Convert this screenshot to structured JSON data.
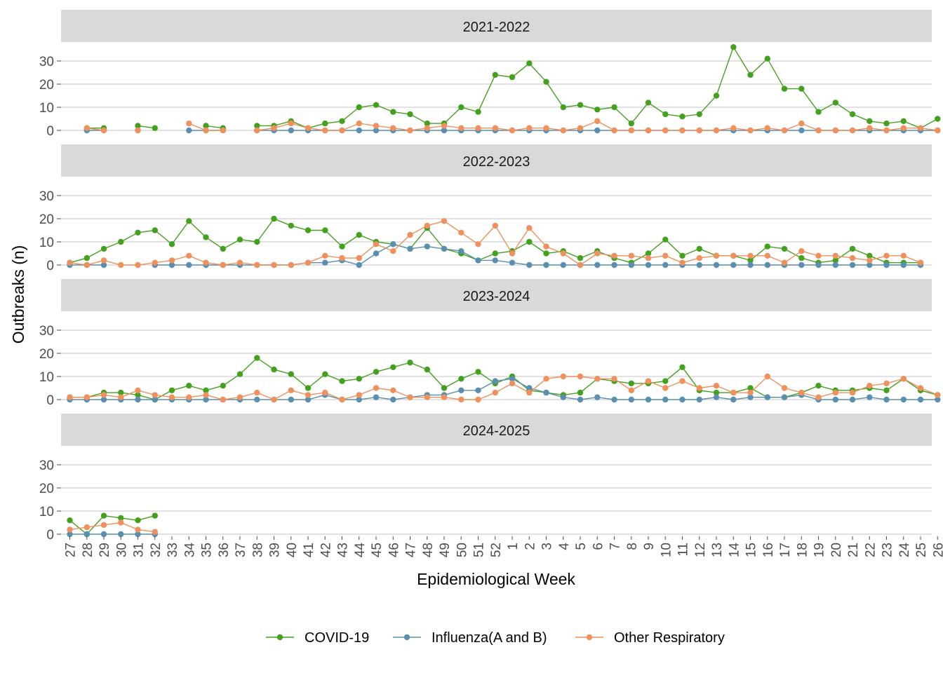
{
  "chart_data": {
    "type": "line",
    "xlabel": "Epidemiological Week",
    "ylabel": "Outbreaks (n)",
    "ylim": [
      0,
      36
    ],
    "yticks": [
      0,
      10,
      20,
      30
    ],
    "grid": "horizontal",
    "legend_position": "bottom",
    "x": [
      "27",
      "28",
      "29",
      "30",
      "31",
      "32",
      "33",
      "34",
      "35",
      "36",
      "37",
      "38",
      "39",
      "40",
      "41",
      "42",
      "43",
      "44",
      "45",
      "46",
      "47",
      "48",
      "49",
      "50",
      "51",
      "52",
      "1",
      "2",
      "3",
      "4",
      "5",
      "6",
      "7",
      "8",
      "9",
      "10",
      "11",
      "12",
      "13",
      "14",
      "15",
      "16",
      "17",
      "18",
      "19",
      "20",
      "21",
      "22",
      "23",
      "24",
      "25",
      "26"
    ],
    "series_styles": [
      {
        "name": "COVID-19",
        "color": "#43a11e"
      },
      {
        "name": "Influenza(A and B)",
        "color": "#5b8fb0"
      },
      {
        "name": "Other Respiratory",
        "color": "#f0905d"
      }
    ],
    "panels": [
      {
        "label": "2021-2022",
        "series": [
          {
            "name": "COVID-19",
            "values": [
              null,
              1,
              1,
              null,
              2,
              1,
              null,
              null,
              2,
              1,
              null,
              2,
              2,
              4,
              1,
              3,
              4,
              10,
              11,
              8,
              7,
              3,
              3,
              10,
              8,
              24,
              23,
              29,
              21,
              10,
              11,
              9,
              10,
              3,
              12,
              7,
              6,
              7,
              15,
              36,
              24,
              31,
              18,
              18,
              8,
              12,
              7,
              4,
              3,
              4,
              1,
              5
            ]
          },
          {
            "name": "Influenza(A and B)",
            "values": [
              null,
              0,
              0,
              null,
              0,
              null,
              null,
              0,
              0,
              0,
              null,
              0,
              0,
              0,
              0,
              0,
              0,
              0,
              0,
              0,
              0,
              0,
              0,
              0,
              0,
              0,
              0,
              0,
              0,
              0,
              0,
              0,
              0,
              0,
              0,
              0,
              0,
              0,
              0,
              0,
              0,
              0,
              0,
              0,
              0,
              0,
              0,
              0,
              0,
              0,
              0,
              0
            ]
          },
          {
            "name": "Other Respiratory",
            "values": [
              null,
              1,
              0,
              null,
              0,
              null,
              null,
              3,
              0,
              0,
              null,
              0,
              1,
              3,
              1,
              0,
              0,
              3,
              2,
              1,
              0,
              1,
              2,
              1,
              1,
              1,
              0,
              1,
              1,
              0,
              1,
              4,
              0,
              0,
              0,
              0,
              0,
              0,
              0,
              1,
              0,
              1,
              0,
              3,
              0,
              0,
              0,
              1,
              0,
              1,
              1,
              0
            ]
          }
        ]
      },
      {
        "label": "2022-2023",
        "series": [
          {
            "name": "COVID-19",
            "values": [
              1,
              3,
              7,
              10,
              14,
              15,
              9,
              19,
              12,
              7,
              11,
              10,
              20,
              17,
              15,
              15,
              8,
              13,
              10,
              9,
              7,
              16,
              7,
              5,
              2,
              5,
              6,
              10,
              5,
              6,
              3,
              6,
              3,
              1,
              5,
              11,
              4,
              7,
              4,
              4,
              2,
              8,
              7,
              3,
              1,
              2,
              7,
              4,
              1,
              1,
              1,
              null
            ]
          },
          {
            "name": "Influenza(A and B)",
            "values": [
              0,
              0,
              0,
              null,
              null,
              0,
              0,
              0,
              0,
              0,
              0,
              0,
              0,
              0,
              1,
              1,
              2,
              0,
              5,
              9,
              7,
              8,
              7,
              6,
              2,
              2,
              1,
              0,
              0,
              0,
              0,
              0,
              0,
              0,
              0,
              0,
              0,
              0,
              0,
              0,
              0,
              0,
              0,
              0,
              0,
              0,
              0,
              0,
              0,
              0,
              0,
              null
            ]
          },
          {
            "name": "Other Respiratory",
            "values": [
              1,
              0,
              2,
              0,
              0,
              1,
              2,
              4,
              1,
              0,
              1,
              0,
              0,
              0,
              1,
              4,
              3,
              3,
              9,
              6,
              13,
              17,
              19,
              14,
              9,
              17,
              5,
              16,
              8,
              5,
              0,
              5,
              4,
              4,
              3,
              4,
              1,
              3,
              4,
              4,
              4,
              4,
              1,
              6,
              4,
              4,
              3,
              2,
              4,
              4,
              1,
              null
            ]
          }
        ]
      },
      {
        "label": "2023-2024",
        "series": [
          {
            "name": "COVID-19",
            "values": [
              1,
              1,
              3,
              3,
              2,
              0,
              4,
              6,
              4,
              6,
              11,
              18,
              13,
              11,
              5,
              11,
              8,
              9,
              12,
              14,
              16,
              13,
              5,
              9,
              12,
              7,
              10,
              4,
              3,
              2,
              3,
              9,
              8,
              7,
              7,
              8,
              14,
              4,
              3,
              3,
              5,
              1,
              1,
              3,
              6,
              4,
              4,
              5,
              4,
              9,
              4,
              2
            ]
          },
          {
            "name": "Influenza(A and B)",
            "values": [
              0,
              0,
              0,
              0,
              0,
              0,
              0,
              0,
              0,
              0,
              0,
              0,
              0,
              0,
              0,
              2,
              0,
              0,
              1,
              0,
              1,
              2,
              2,
              4,
              4,
              8,
              9,
              5,
              3,
              1,
              0,
              1,
              0,
              0,
              0,
              0,
              0,
              0,
              1,
              0,
              1,
              1,
              1,
              2,
              0,
              0,
              0,
              1,
              0,
              0,
              0,
              0
            ]
          },
          {
            "name": "Other Respiratory",
            "values": [
              1,
              1,
              2,
              1,
              4,
              2,
              1,
              1,
              2,
              0,
              1,
              3,
              0,
              4,
              2,
              3,
              0,
              2,
              5,
              4,
              1,
              1,
              1,
              0,
              0,
              3,
              7,
              3,
              9,
              10,
              10,
              9,
              9,
              4,
              8,
              5,
              8,
              5,
              6,
              3,
              3,
              10,
              5,
              3,
              1,
              3,
              3,
              6,
              7,
              9,
              5,
              2
            ]
          }
        ]
      },
      {
        "label": "2024-2025",
        "series": [
          {
            "name": "COVID-19",
            "values": [
              6,
              0,
              8,
              7,
              6,
              8,
              null,
              null,
              null,
              null,
              null,
              null,
              null,
              null,
              null,
              null,
              null,
              null,
              null,
              null,
              null,
              null,
              null,
              null,
              null,
              null,
              null,
              null,
              null,
              null,
              null,
              null,
              null,
              null,
              null,
              null,
              null,
              null,
              null,
              null,
              null,
              null,
              null,
              null,
              null,
              null,
              null,
              null,
              null,
              null,
              null,
              null
            ]
          },
          {
            "name": "Influenza(A and B)",
            "values": [
              0,
              0,
              0,
              0,
              0,
              0,
              null,
              null,
              null,
              null,
              null,
              null,
              null,
              null,
              null,
              null,
              null,
              null,
              null,
              null,
              null,
              null,
              null,
              null,
              null,
              null,
              null,
              null,
              null,
              null,
              null,
              null,
              null,
              null,
              null,
              null,
              null,
              null,
              null,
              null,
              null,
              null,
              null,
              null,
              null,
              null,
              null,
              null,
              null,
              null,
              null,
              null
            ]
          },
          {
            "name": "Other Respiratory",
            "values": [
              2,
              3,
              4,
              5,
              2,
              1,
              null,
              null,
              null,
              null,
              null,
              null,
              null,
              null,
              null,
              null,
              null,
              null,
              null,
              null,
              null,
              null,
              null,
              null,
              null,
              null,
              null,
              null,
              null,
              null,
              null,
              null,
              null,
              null,
              null,
              null,
              null,
              null,
              null,
              null,
              null,
              null,
              null,
              null,
              null,
              null,
              null,
              null,
              null,
              null,
              null,
              null
            ]
          }
        ]
      }
    ]
  }
}
